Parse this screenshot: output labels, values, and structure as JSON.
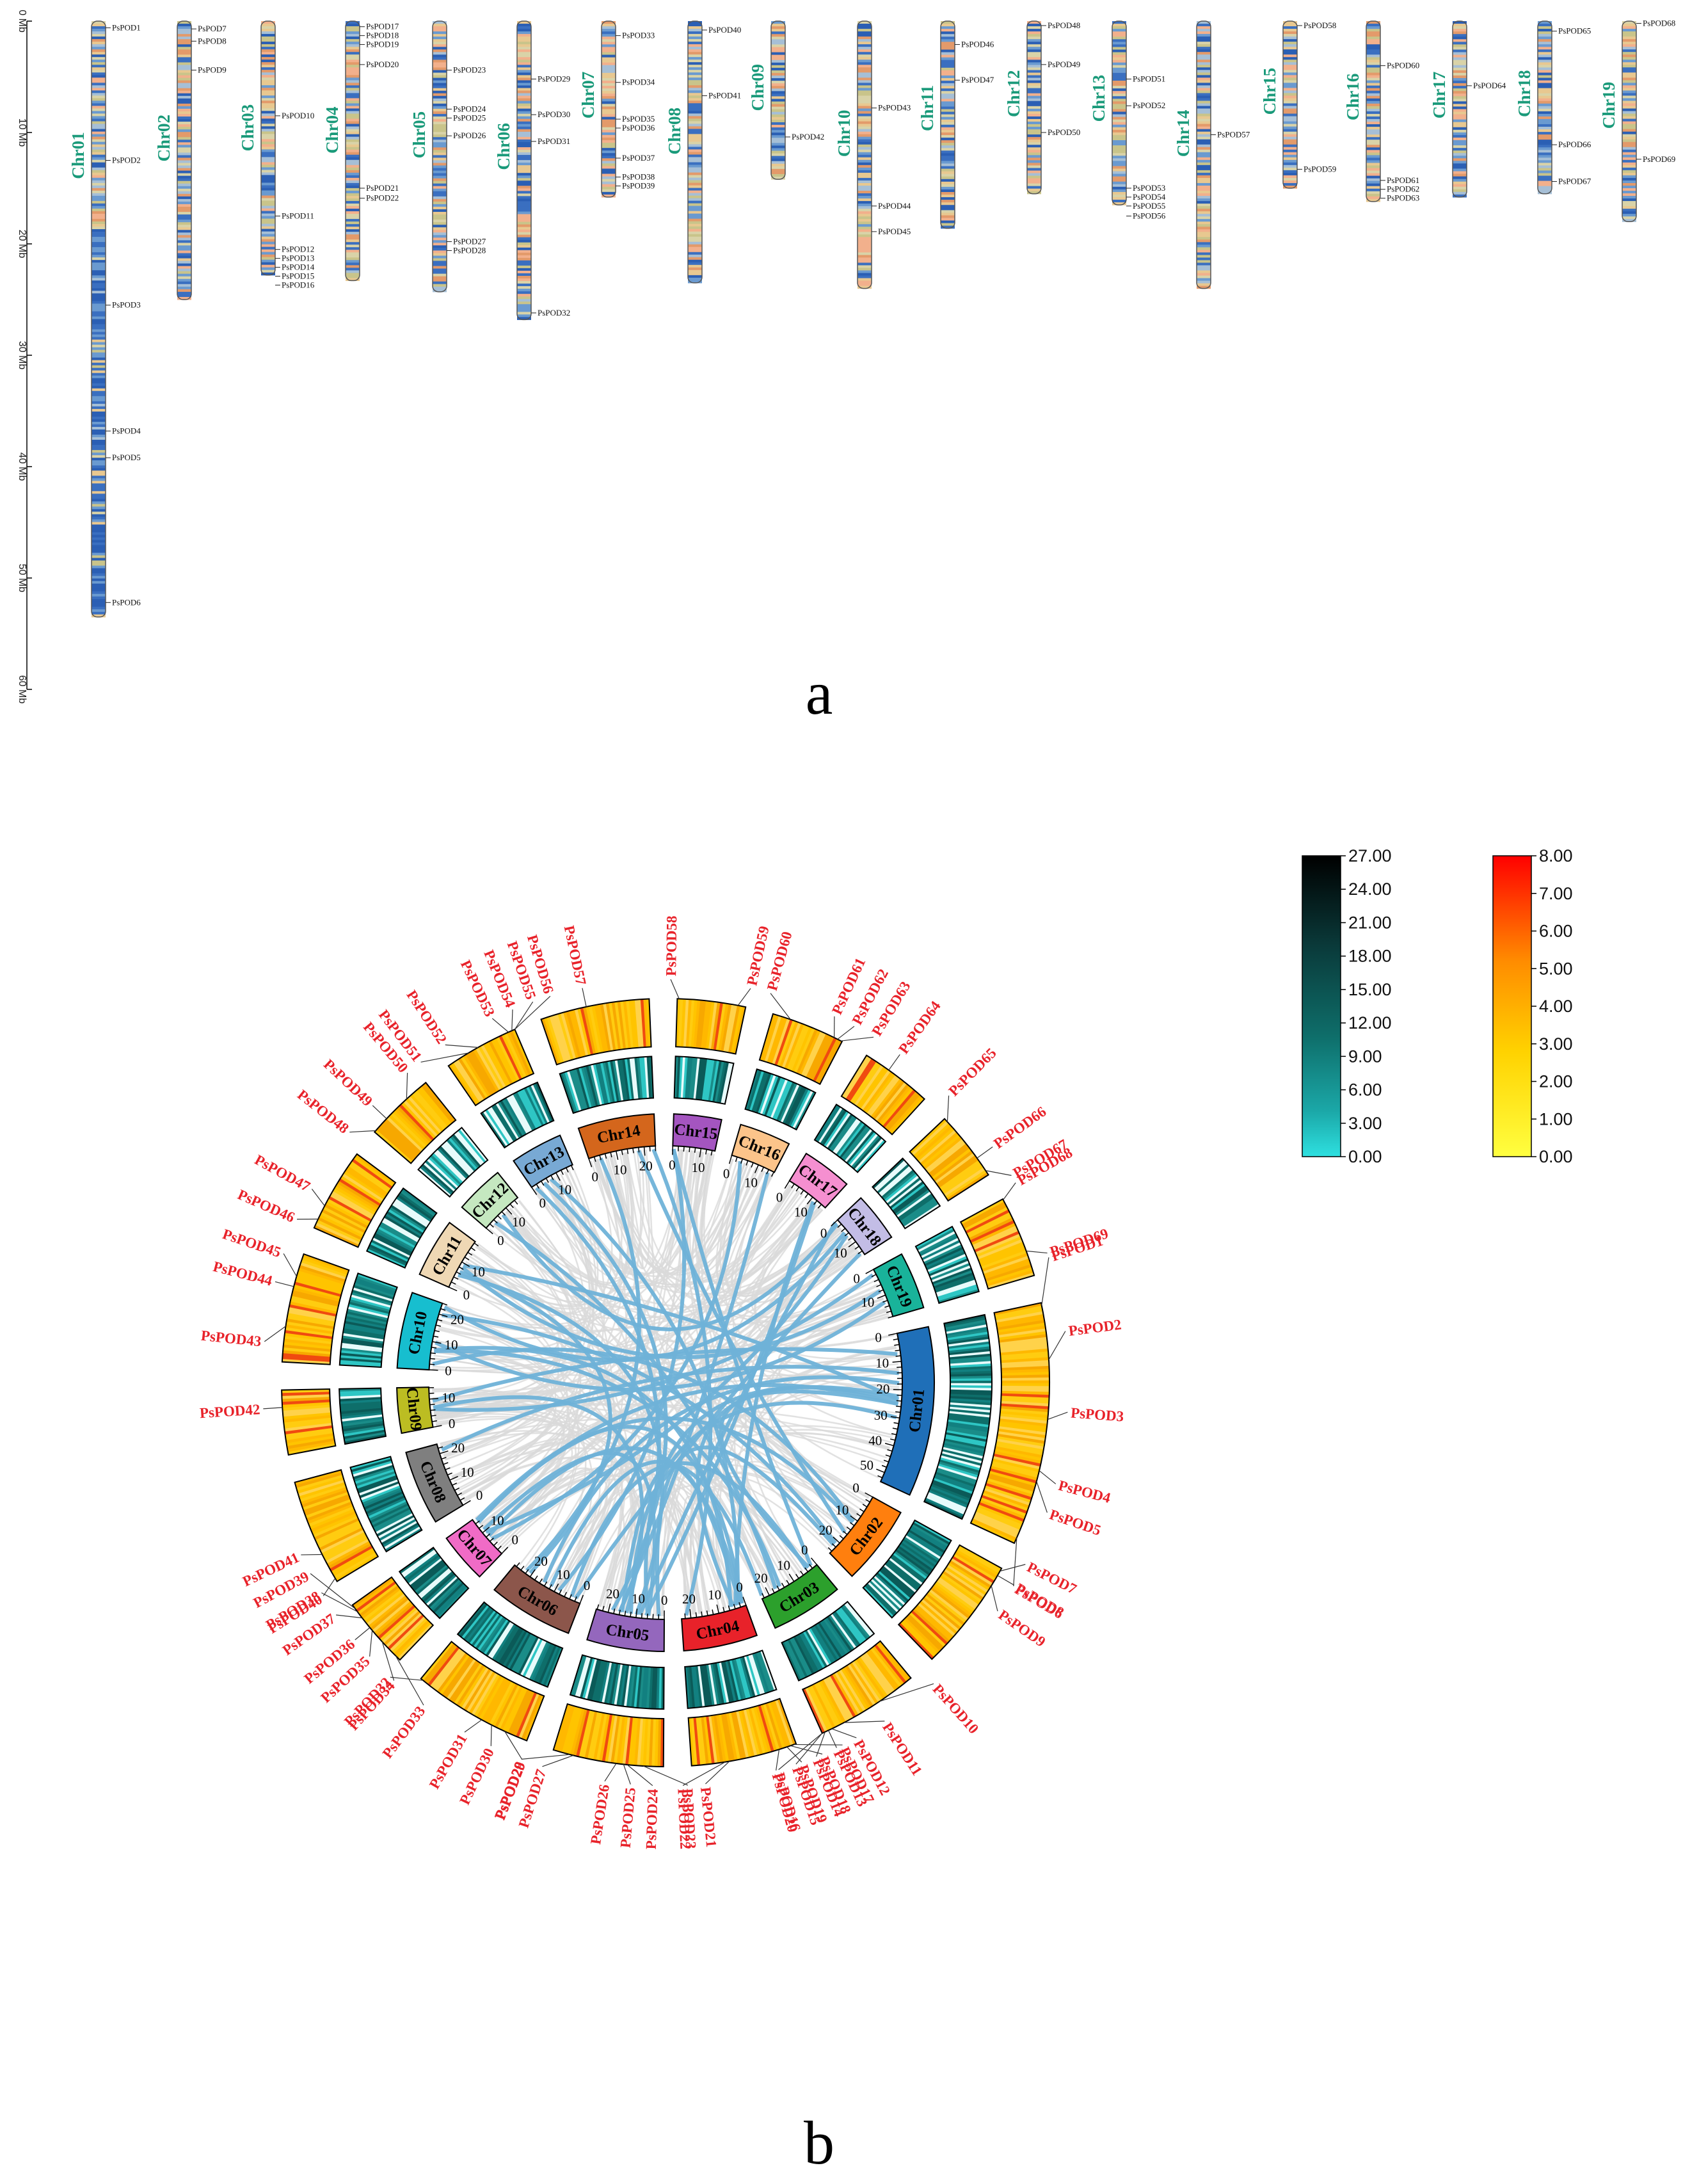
{
  "panel_a": {
    "label": "a",
    "axis": {
      "ticks": [
        "0 Mb",
        "10 Mb",
        "20 Mb",
        "30 Mb",
        "40 Mb",
        "50 Mb",
        "60 Mb"
      ]
    },
    "chromosomes": [
      {
        "name": "Chr01",
        "length": 53.5,
        "genes": [
          {
            "id": "PsPOD1",
            "pos": 0.6
          },
          {
            "id": "PsPOD2",
            "pos": 12.5
          },
          {
            "id": "PsPOD3",
            "pos": 25.5
          },
          {
            "id": "PsPOD4",
            "pos": 36.8
          },
          {
            "id": "PsPOD5",
            "pos": 39.2
          },
          {
            "id": "PsPOD6",
            "pos": 52.2
          }
        ]
      },
      {
        "name": "Chr02",
        "length": 25,
        "genes": [
          {
            "id": "PsPOD7",
            "pos": 0.7
          },
          {
            "id": "PsPOD8",
            "pos": 1.8
          },
          {
            "id": "PsPOD9",
            "pos": 4.4
          }
        ]
      },
      {
        "name": "Chr03",
        "length": 22.8,
        "genes": [
          {
            "id": "PsPOD10",
            "pos": 8.5
          },
          {
            "id": "PsPOD11",
            "pos": 17.5
          },
          {
            "id": "PsPOD12",
            "pos": 20.5
          },
          {
            "id": "PsPOD13",
            "pos": 21.3
          },
          {
            "id": "PsPOD14",
            "pos": 22.1
          },
          {
            "id": "PsPOD15",
            "pos": 22.9
          },
          {
            "id": "PsPOD16",
            "pos": 23.7
          }
        ]
      },
      {
        "name": "Chr04",
        "length": 23.3,
        "genes": [
          {
            "id": "PsPOD17",
            "pos": 0.5
          },
          {
            "id": "PsPOD18",
            "pos": 1.3
          },
          {
            "id": "PsPOD19",
            "pos": 2.1
          },
          {
            "id": "PsPOD20",
            "pos": 3.9
          },
          {
            "id": "PsPOD21",
            "pos": 15.0
          },
          {
            "id": "PsPOD22",
            "pos": 15.9
          }
        ]
      },
      {
        "name": "Chr05",
        "length": 24.3,
        "genes": [
          {
            "id": "PsPOD23",
            "pos": 4.4
          },
          {
            "id": "PsPOD24",
            "pos": 7.9
          },
          {
            "id": "PsPOD25",
            "pos": 8.7
          },
          {
            "id": "PsPOD26",
            "pos": 10.3
          },
          {
            "id": "PsPOD27",
            "pos": 19.8
          },
          {
            "id": "PsPOD28",
            "pos": 20.6
          }
        ]
      },
      {
        "name": "Chr06",
        "length": 26.8,
        "genes": [
          {
            "id": "PsPOD29",
            "pos": 5.2
          },
          {
            "id": "PsPOD30",
            "pos": 8.4
          },
          {
            "id": "PsPOD31",
            "pos": 10.8
          },
          {
            "id": "PsPOD32",
            "pos": 26.2
          }
        ]
      },
      {
        "name": "Chr07",
        "length": 15.8,
        "genes": [
          {
            "id": "PsPOD33",
            "pos": 1.3
          },
          {
            "id": "PsPOD34",
            "pos": 5.5
          },
          {
            "id": "PsPOD35",
            "pos": 8.8
          },
          {
            "id": "PsPOD36",
            "pos": 9.6
          },
          {
            "id": "PsPOD37",
            "pos": 12.3
          },
          {
            "id": "PsPOD38",
            "pos": 14.0
          },
          {
            "id": "PsPOD39",
            "pos": 14.8
          }
        ]
      },
      {
        "name": "Chr08",
        "length": 23.5,
        "genes": [
          {
            "id": "PsPOD40",
            "pos": 0.8
          },
          {
            "id": "PsPOD41",
            "pos": 6.7
          }
        ]
      },
      {
        "name": "Chr09",
        "length": 14.2,
        "genes": [
          {
            "id": "PsPOD42",
            "pos": 10.4
          }
        ]
      },
      {
        "name": "Chr10",
        "length": 24,
        "genes": [
          {
            "id": "PsPOD43",
            "pos": 7.8
          },
          {
            "id": "PsPOD44",
            "pos": 16.6
          },
          {
            "id": "PsPOD45",
            "pos": 18.9
          }
        ]
      },
      {
        "name": "Chr11",
        "length": 18.6,
        "genes": [
          {
            "id": "PsPOD46",
            "pos": 2.1
          },
          {
            "id": "PsPOD47",
            "pos": 5.3
          }
        ]
      },
      {
        "name": "Chr12",
        "length": 15.5,
        "genes": [
          {
            "id": "PsPOD48",
            "pos": 0.4
          },
          {
            "id": "PsPOD49",
            "pos": 3.9
          },
          {
            "id": "PsPOD50",
            "pos": 10.0
          }
        ]
      },
      {
        "name": "Chr13",
        "length": 16.5,
        "genes": [
          {
            "id": "PsPOD51",
            "pos": 5.2
          },
          {
            "id": "PsPOD52",
            "pos": 7.6
          },
          {
            "id": "PsPOD53",
            "pos": 15.0
          },
          {
            "id": "PsPOD54",
            "pos": 15.8
          },
          {
            "id": "PsPOD55",
            "pos": 16.6
          },
          {
            "id": "PsPOD56",
            "pos": 17.5
          }
        ]
      },
      {
        "name": "Chr14",
        "length": 24,
        "genes": [
          {
            "id": "PsPOD57",
            "pos": 10.2
          }
        ]
      },
      {
        "name": "Chr15",
        "length": 15,
        "genes": [
          {
            "id": "PsPOD58",
            "pos": 0.4
          },
          {
            "id": "PsPOD59",
            "pos": 13.3
          }
        ]
      },
      {
        "name": "Chr16",
        "length": 16.2,
        "genes": [
          {
            "id": "PsPOD60",
            "pos": 4.0
          },
          {
            "id": "PsPOD61",
            "pos": 14.3
          },
          {
            "id": "PsPOD62",
            "pos": 15.1
          },
          {
            "id": "PsPOD63",
            "pos": 15.9
          }
        ]
      },
      {
        "name": "Chr17",
        "length": 15.8,
        "genes": [
          {
            "id": "PsPOD64",
            "pos": 5.8
          }
        ]
      },
      {
        "name": "Chr18",
        "length": 15.5,
        "genes": [
          {
            "id": "PsPOD65",
            "pos": 0.9
          },
          {
            "id": "PsPOD66",
            "pos": 11.1
          },
          {
            "id": "PsPOD67",
            "pos": 14.4
          }
        ]
      },
      {
        "name": "Chr19",
        "length": 18,
        "genes": [
          {
            "id": "PsPOD68",
            "pos": 0.2
          },
          {
            "id": "PsPOD69",
            "pos": 12.4
          }
        ]
      }
    ]
  },
  "panel_b": {
    "label": "b",
    "chromosome_colors": {
      "Chr01": "#1f6fb8",
      "Chr02": "#ff7f0e",
      "Chr03": "#2ca02c",
      "Chr04": "#e8222a",
      "Chr05": "#9467bd",
      "Chr06": "#8c564b",
      "Chr07": "#f06bc6",
      "Chr08": "#7f7f7f",
      "Chr09": "#bcbd22",
      "Chr10": "#17becf",
      "Chr11": "#efd8b4",
      "Chr12": "#c5e8c0",
      "Chr13": "#78a9d4",
      "Chr14": "#d4661c",
      "Chr15": "#a455c0",
      "Chr16": "#fcc48a",
      "Chr17": "#f58fd0",
      "Chr18": "#c3bde6",
      "Chr19": "#19b39a"
    },
    "legend_teal": {
      "ticks": [
        "27.00",
        "24.00",
        "21.00",
        "18.00",
        "15.00",
        "12.00",
        "9.00",
        "6.00",
        "3.00",
        "0.00"
      ],
      "colors": [
        "#000000",
        "#0a3a3a",
        "#0e6e6a",
        "#1ba8a8",
        "#2ee0e0"
      ]
    },
    "legend_heat": {
      "ticks": [
        "8.00",
        "7.00",
        "6.00",
        "5.00",
        "4.00",
        "3.00",
        "2.00",
        "1.00",
        "0.00"
      ],
      "colors": [
        "#ff0000",
        "#ff8c00",
        "#ffd200",
        "#ffff40"
      ]
    },
    "tick_labels": [
      "0",
      "10",
      "20",
      "30",
      "40",
      "50"
    ]
  }
}
